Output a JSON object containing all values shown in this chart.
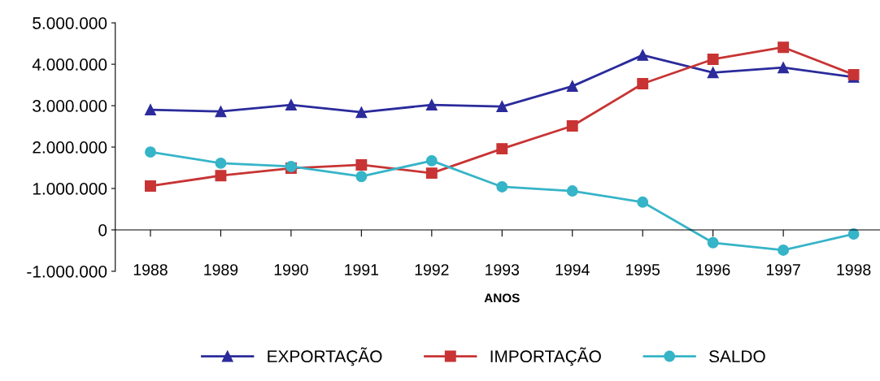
{
  "chart_data": {
    "type": "line",
    "xlabel": "ANOS",
    "categories": [
      "1988",
      "1989",
      "1990",
      "1991",
      "1992",
      "1993",
      "1994",
      "1995",
      "1996",
      "1997",
      "1998"
    ],
    "series": [
      {
        "name": "EXPORTAÇÃO",
        "color": "#2b2b9c",
        "marker": "triangle",
        "values": [
          2900000,
          2860000,
          3020000,
          2840000,
          3020000,
          2980000,
          3470000,
          4220000,
          3800000,
          3920000,
          3690000
        ]
      },
      {
        "name": "IMPORTAÇÃO",
        "color": "#c83434",
        "marker": "square",
        "values": [
          1060000,
          1310000,
          1490000,
          1570000,
          1370000,
          1960000,
          2510000,
          3530000,
          4120000,
          4410000,
          3750000
        ]
      },
      {
        "name": "SALDO",
        "color": "#36b4c8",
        "marker": "circle",
        "values": [
          1880000,
          1610000,
          1530000,
          1290000,
          1670000,
          1040000,
          940000,
          670000,
          -310000,
          -490000,
          -100000
        ]
      }
    ],
    "ylim": [
      -1000000,
      5000000
    ],
    "yticks": [
      {
        "value": -1000000,
        "label": "-1.000.000"
      },
      {
        "value": 0,
        "label": "0"
      },
      {
        "value": 1000000,
        "label": "1.000.000"
      },
      {
        "value": 2000000,
        "label": "2.000.000"
      },
      {
        "value": 3000000,
        "label": "3.000.000"
      },
      {
        "value": 4000000,
        "label": "4.000.000"
      },
      {
        "value": 5000000,
        "label": "5.000.000"
      }
    ],
    "grid": false,
    "legend": "bottom",
    "line_style": "solid"
  }
}
